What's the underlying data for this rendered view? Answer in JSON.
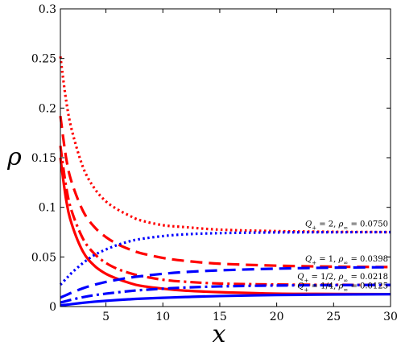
{
  "chart_data": {
    "type": "line",
    "title": "",
    "xlabel": "x",
    "ylabel": "ρ",
    "xlim": [
      1,
      30
    ],
    "ylim": [
      0,
      0.3
    ],
    "xticks": [
      5,
      10,
      15,
      20,
      25,
      30
    ],
    "yticks": [
      0,
      0.05,
      0.1,
      0.15,
      0.2,
      0.25,
      0.3
    ],
    "xtick_labels": [
      "5",
      "10",
      "15",
      "20",
      "25",
      "30"
    ],
    "ytick_labels": [
      "0",
      "0.05",
      "0.1",
      "0.15",
      "0.2",
      "0.25",
      "0.3"
    ],
    "grid": false,
    "x": [
      1,
      1.5,
      2,
      3,
      4,
      5,
      6,
      7,
      8,
      10,
      12,
      15,
      20,
      25,
      30
    ],
    "series": [
      {
        "color": "#ff0000",
        "style": "solid",
        "values": [
          0.15,
          0.108,
          0.083,
          0.055,
          0.041,
          0.033,
          0.028,
          0.024,
          0.021,
          0.018,
          0.016,
          0.0145,
          0.013,
          0.0127,
          0.0125
        ]
      },
      {
        "color": "#ff0000",
        "style": "dashdot",
        "values": [
          0.162,
          0.121,
          0.096,
          0.068,
          0.053,
          0.044,
          0.038,
          0.034,
          0.031,
          0.027,
          0.025,
          0.0232,
          0.0222,
          0.0219,
          0.0218
        ]
      },
      {
        "color": "#ff0000",
        "style": "dashed",
        "values": [
          0.192,
          0.15,
          0.125,
          0.096,
          0.08,
          0.07,
          0.063,
          0.058,
          0.054,
          0.049,
          0.046,
          0.0432,
          0.0412,
          0.0402,
          0.0398
        ]
      },
      {
        "color": "#ff0000",
        "style": "dotted",
        "values": [
          0.252,
          0.208,
          0.178,
          0.14,
          0.119,
          0.106,
          0.098,
          0.092,
          0.087,
          0.082,
          0.08,
          0.0775,
          0.076,
          0.0753,
          0.075
        ]
      },
      {
        "color": "#0000ff",
        "style": "solid",
        "values": [
          0.001,
          0.0018,
          0.0025,
          0.0038,
          0.0049,
          0.0058,
          0.0066,
          0.0073,
          0.0079,
          0.0088,
          0.0096,
          0.0106,
          0.0116,
          0.0121,
          0.0124
        ]
      },
      {
        "color": "#0000ff",
        "style": "dashdot",
        "values": [
          0.004,
          0.0055,
          0.007,
          0.0095,
          0.0115,
          0.013,
          0.0143,
          0.0155,
          0.0165,
          0.018,
          0.0192,
          0.0203,
          0.0212,
          0.0216,
          0.0218
        ]
      },
      {
        "color": "#0000ff",
        "style": "dashed",
        "values": [
          0.009,
          0.0115,
          0.014,
          0.0185,
          0.022,
          0.0248,
          0.027,
          0.029,
          0.0305,
          0.033,
          0.0348,
          0.0365,
          0.0382,
          0.0392,
          0.0396
        ]
      },
      {
        "color": "#0000ff",
        "style": "dotted",
        "values": [
          0.022,
          0.028,
          0.034,
          0.044,
          0.052,
          0.0575,
          0.062,
          0.0655,
          0.068,
          0.071,
          0.0728,
          0.074,
          0.0747,
          0.0749,
          0.075
        ]
      }
    ],
    "annotations": [
      {
        "q_sub": "+",
        "q_value": "2",
        "rho_sub": "∞",
        "rho_value": "0.0750",
        "anchor_y": 0.075
      },
      {
        "q_sub": "+",
        "q_value": "1",
        "rho_sub": "∞",
        "rho_value": "0.0398",
        "anchor_y": 0.0398
      },
      {
        "q_sub": "+",
        "q_value": "1/2",
        "rho_sub": "∞",
        "rho_value": "0.0218",
        "anchor_y": 0.0218
      },
      {
        "q_sub": "+",
        "q_value": "1/4",
        "rho_sub": "∞",
        "rho_value": "0.0125",
        "anchor_y": 0.0125
      }
    ]
  }
}
